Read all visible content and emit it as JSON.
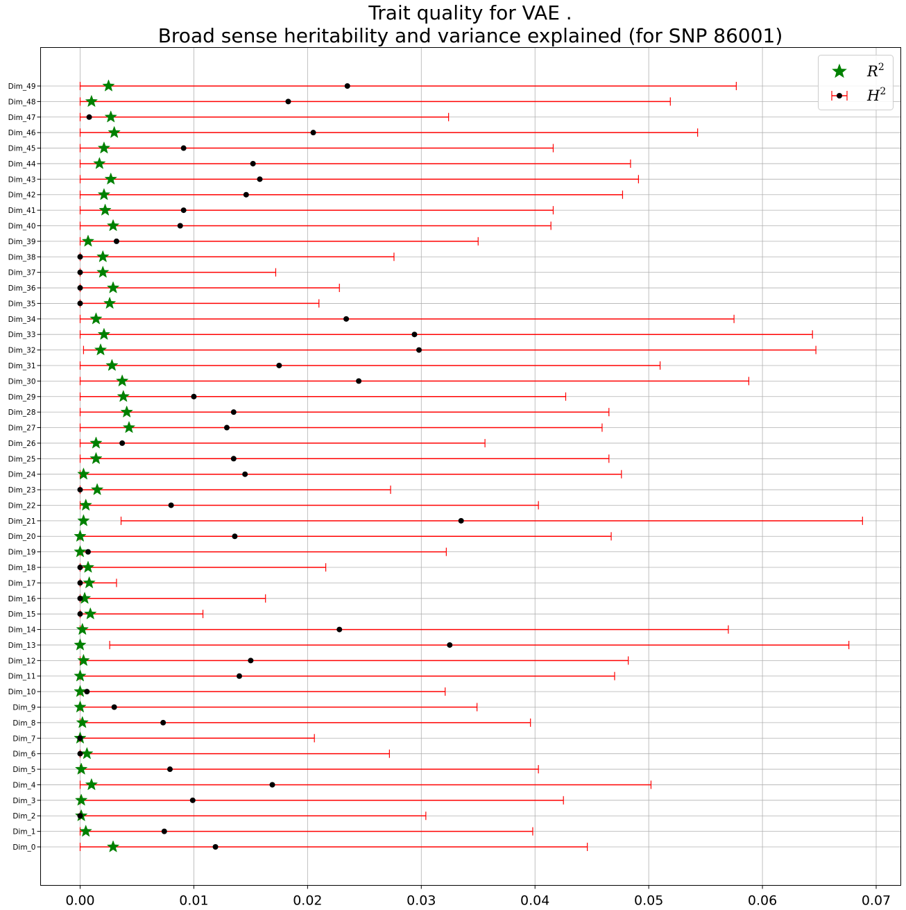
{
  "chart_data": {
    "type": "scatter",
    "title": "Trait quality for VAE .",
    "subtitle": "Broad sense heritability and variance explained (for SNP 86001)",
    "xlabel": "",
    "ylabel": "",
    "xlim": [
      -0.0034,
      0.0722
    ],
    "xticks": [
      "0.00",
      "0.01",
      "0.02",
      "0.03",
      "0.04",
      "0.05",
      "0.06",
      "0.07"
    ],
    "xtick_values": [
      0,
      0.01,
      0.02,
      0.03,
      0.04,
      0.05,
      0.06,
      0.07
    ],
    "grid": true,
    "legend_position": "top-right",
    "categories": [
      "Dim_0",
      "Dim_1",
      "Dim_2",
      "Dim_3",
      "Dim_4",
      "Dim_5",
      "Dim_6",
      "Dim_7",
      "Dim_8",
      "Dim_9",
      "Dim_10",
      "Dim_11",
      "Dim_12",
      "Dim_13",
      "Dim_14",
      "Dim_15",
      "Dim_16",
      "Dim_17",
      "Dim_18",
      "Dim_19",
      "Dim_20",
      "Dim_21",
      "Dim_22",
      "Dim_23",
      "Dim_24",
      "Dim_25",
      "Dim_26",
      "Dim_27",
      "Dim_28",
      "Dim_29",
      "Dim_30",
      "Dim_31",
      "Dim_32",
      "Dim_33",
      "Dim_34",
      "Dim_35",
      "Dim_36",
      "Dim_37",
      "Dim_38",
      "Dim_39",
      "Dim_40",
      "Dim_41",
      "Dim_42",
      "Dim_43",
      "Dim_44",
      "Dim_45",
      "Dim_46",
      "Dim_47",
      "Dim_48",
      "Dim_49"
    ],
    "series": [
      {
        "name": "$R^2$",
        "legend_base": "R",
        "legend_sup": "2",
        "marker": "star",
        "color": "#008000",
        "values": [
          0.0029,
          0.0005,
          0.0001,
          0.0001,
          0.001,
          0.0001,
          0.0006,
          0.0,
          0.0002,
          0.0,
          0.0,
          0.0,
          0.0003,
          0.0,
          0.0002,
          0.0009,
          0.0004,
          0.0008,
          0.0007,
          0.0,
          0.0,
          0.0003,
          0.0005,
          0.0015,
          0.0003,
          0.0014,
          0.0014,
          0.0043,
          0.0041,
          0.0038,
          0.0037,
          0.0028,
          0.0018,
          0.0021,
          0.0014,
          0.0026,
          0.0029,
          0.002,
          0.002,
          0.0007,
          0.0029,
          0.0022,
          0.0021,
          0.0027,
          0.0017,
          0.0021,
          0.003,
          0.0027,
          0.001,
          0.0025
        ]
      },
      {
        "name": "$H^2$",
        "legend_base": "H",
        "legend_sup": "2",
        "marker": "circle",
        "color": "#000000",
        "error_color": "#ff0000",
        "values": [
          0.0119,
          0.0074,
          0.0,
          0.0099,
          0.0169,
          0.0079,
          0.0,
          0.0,
          0.0073,
          0.003,
          0.0006,
          0.014,
          0.015,
          0.0325,
          0.0228,
          0.0,
          0.0,
          0.0,
          0.0,
          0.0007,
          0.0136,
          0.0335,
          0.008,
          0.0,
          0.0145,
          0.0135,
          0.0037,
          0.0129,
          0.0135,
          0.01,
          0.0245,
          0.0175,
          0.0298,
          0.0294,
          0.0234,
          0.0,
          0.0,
          0.0,
          0.0,
          0.0032,
          0.0088,
          0.0091,
          0.0146,
          0.0158,
          0.0152,
          0.0091,
          0.0205,
          0.0008,
          0.0183,
          0.0235
        ],
        "ci_low": [
          0.0,
          0.0,
          0.0,
          0.0,
          0.0,
          0.0,
          0.0,
          0.0,
          0.0,
          0.0,
          0.0,
          0.0,
          0.0,
          0.0026,
          0.0,
          0.0,
          0.0,
          0.0,
          0.0,
          0.0,
          0.0,
          0.0036,
          0.0,
          0.0,
          0.0,
          0.0,
          0.0,
          0.0,
          0.0,
          0.0,
          0.0,
          0.0,
          0.0003,
          0.0,
          0.0,
          0.0,
          0.0,
          0.0,
          0.0,
          0.0,
          0.0,
          0.0,
          0.0,
          0.0,
          0.0,
          0.0,
          0.0,
          0.0,
          0.0,
          0.0
        ],
        "ci_high": [
          0.0446,
          0.0398,
          0.0304,
          0.0425,
          0.0502,
          0.0403,
          0.0272,
          0.0206,
          0.0396,
          0.0349,
          0.0321,
          0.047,
          0.0482,
          0.0676,
          0.057,
          0.0108,
          0.0163,
          0.0032,
          0.0216,
          0.0322,
          0.0467,
          0.0688,
          0.0403,
          0.0273,
          0.0476,
          0.0465,
          0.0356,
          0.0459,
          0.0465,
          0.0427,
          0.0588,
          0.051,
          0.0647,
          0.0644,
          0.0575,
          0.021,
          0.0228,
          0.0172,
          0.0276,
          0.035,
          0.0414,
          0.0416,
          0.0477,
          0.0491,
          0.0484,
          0.0416,
          0.0543,
          0.0324,
          0.0519,
          0.0577
        ]
      }
    ]
  }
}
